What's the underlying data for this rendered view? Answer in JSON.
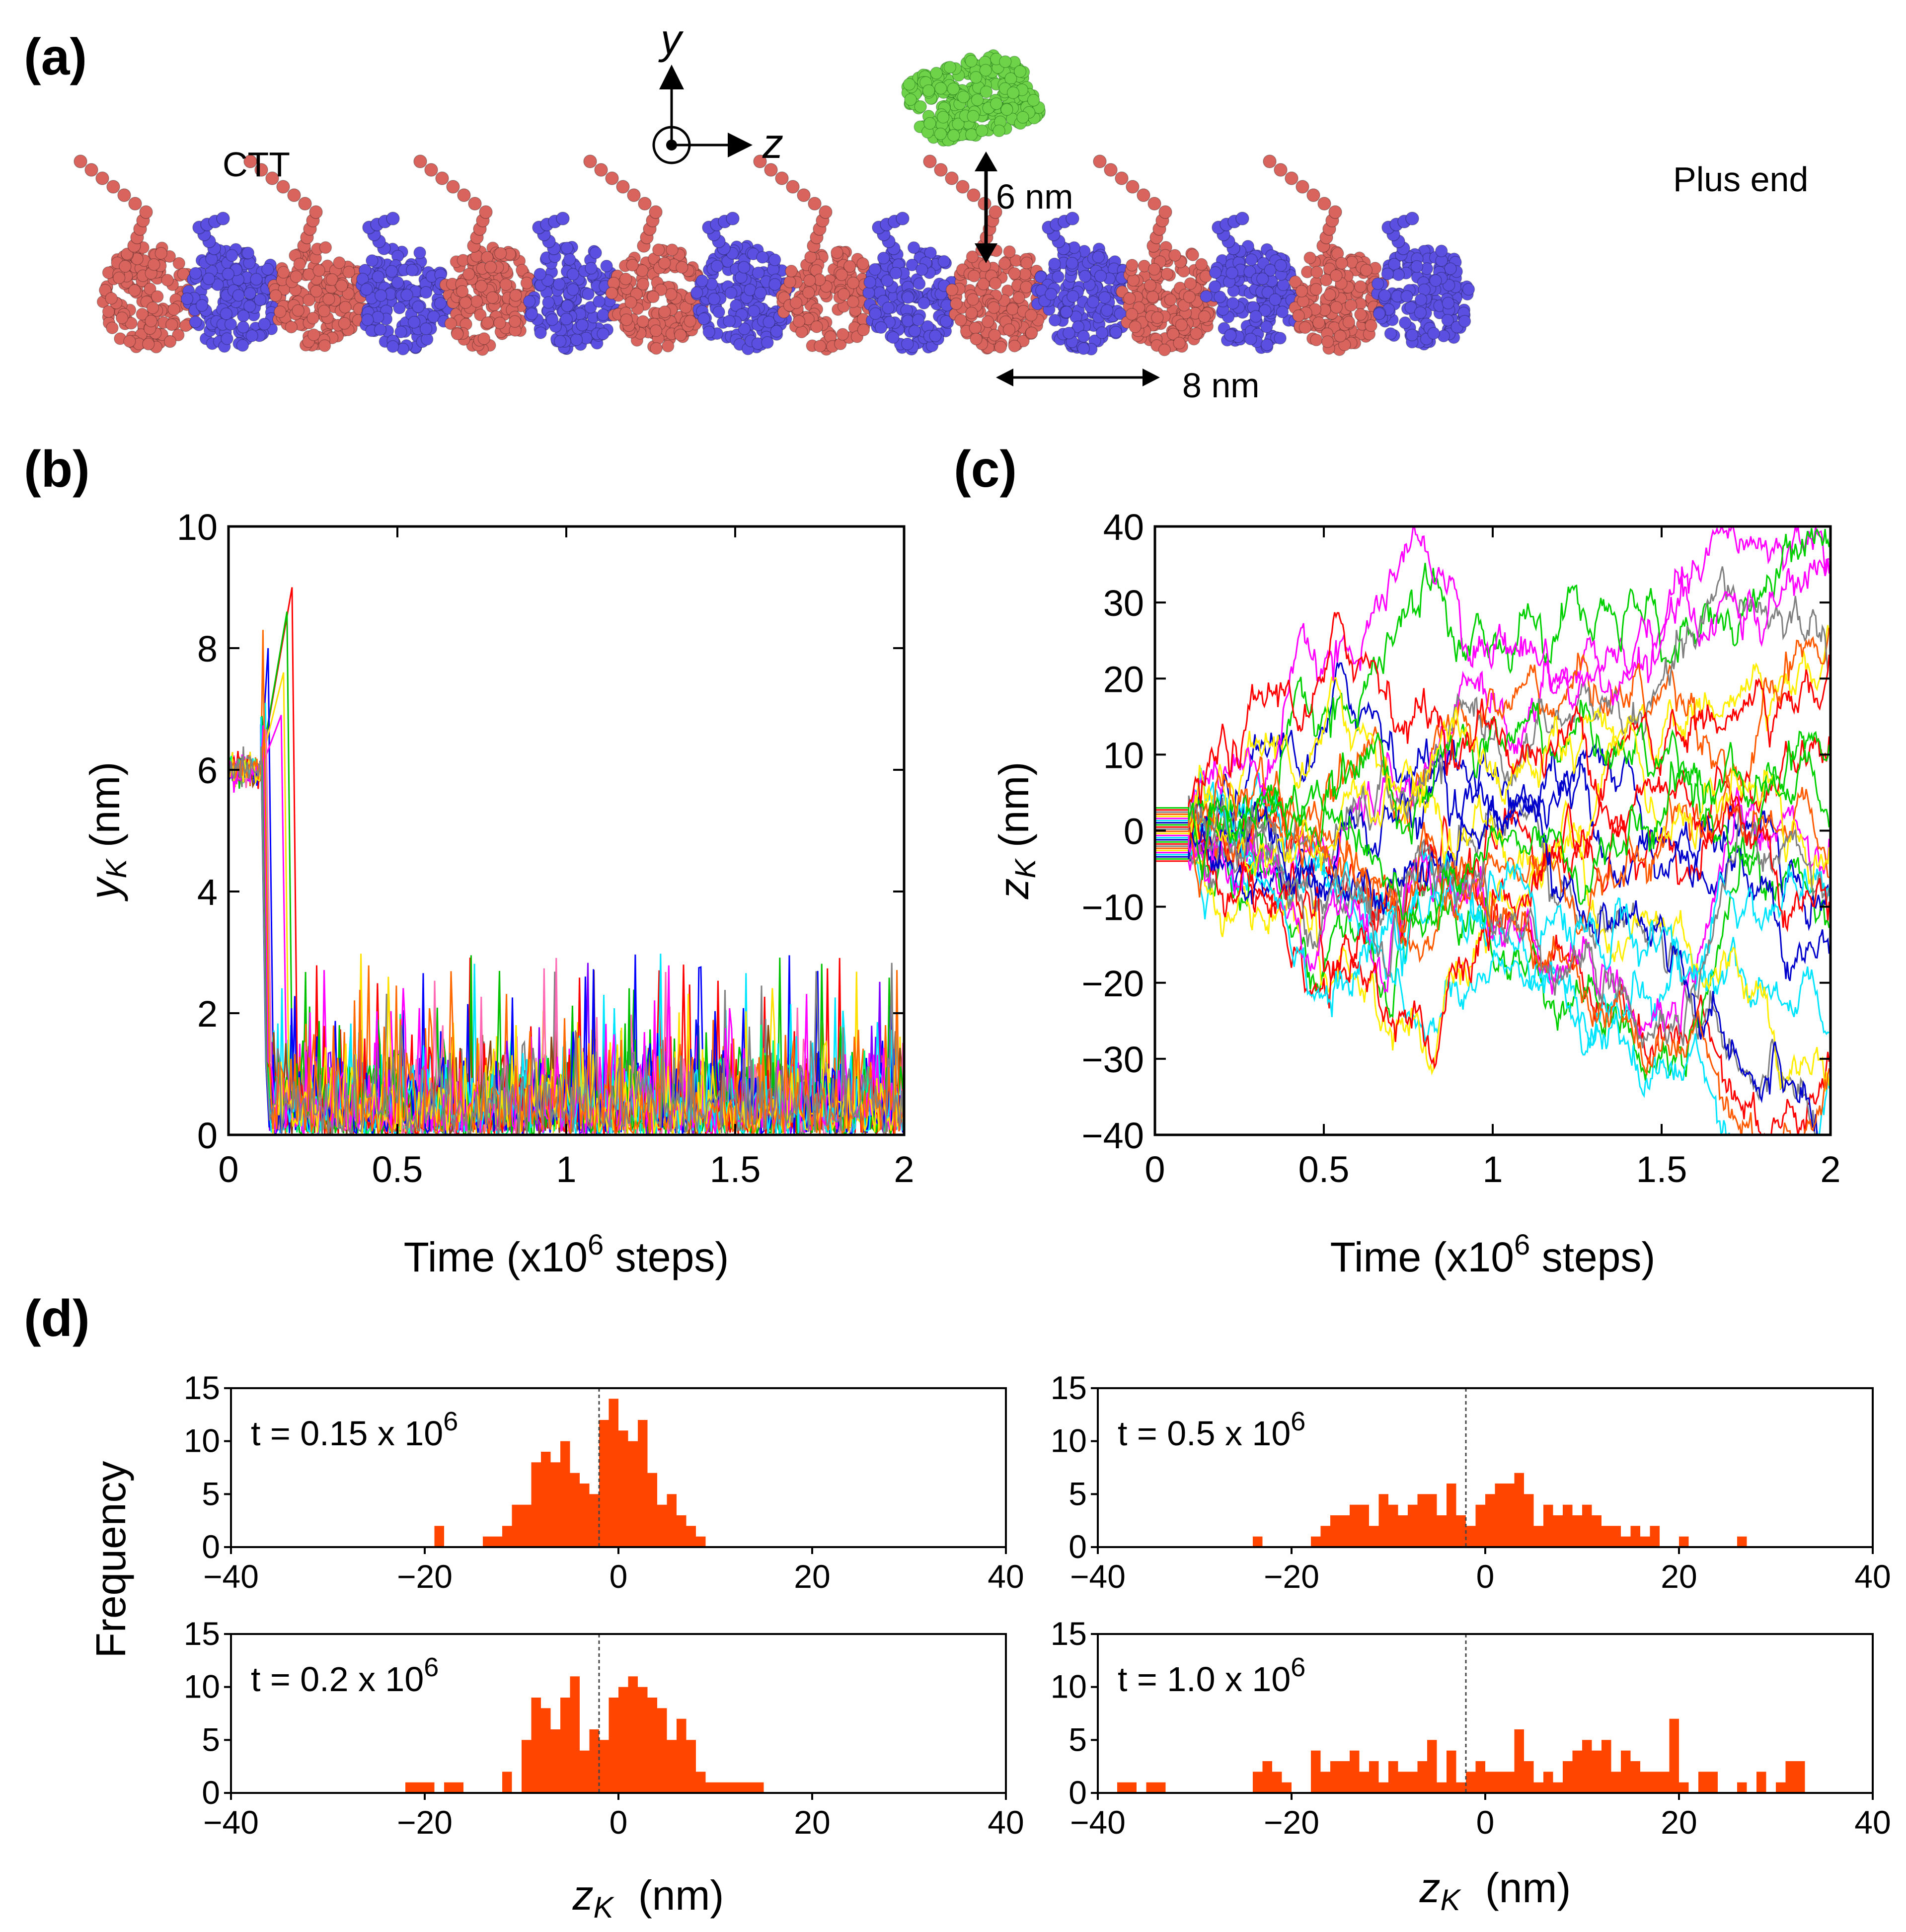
{
  "panel_labels": {
    "a": "(a)",
    "b": "(b)",
    "c": "(c)",
    "d": "(d)"
  },
  "panel_a": {
    "ctt_label": "CTT",
    "plus_end_label": "Plus end",
    "height_label": "6 nm",
    "spacing_label": "8 nm",
    "axis_y": "y",
    "axis_z": "z",
    "colors": {
      "alpha": "#d9645e",
      "beta": "#5a4fe0",
      "kinesin": "#6fd34a"
    }
  },
  "chart_data": [
    {
      "id": "b",
      "type": "line",
      "xlabel_prefix": "Time (x10",
      "xlabel_exp": "6",
      "xlabel_suffix": " steps)",
      "ylabel_main": "y",
      "ylabel_sub": "K",
      "ylabel_unit": " (nm)",
      "xlim": [
        0,
        2
      ],
      "ylim": [
        0,
        10
      ],
      "xticks": [
        0,
        0.5,
        1,
        1.5,
        2
      ],
      "xtick_labels": [
        "0",
        "0.5",
        "1",
        "1.5",
        "2"
      ],
      "yticks": [
        0,
        2,
        4,
        6,
        8,
        10
      ],
      "ytick_labels": [
        "0",
        "2",
        "4",
        "6",
        "8",
        "10"
      ],
      "n_trajectories": 20,
      "initial_height_nm": 6.0,
      "release_time": 0.1,
      "peak_heights": [
        9.0,
        8.6,
        8.0,
        7.1,
        6.9,
        7.6,
        8.3
      ],
      "bound_mean_nm": 0.7,
      "bound_max_nm": 3.0,
      "series_colors": [
        "#ff0000",
        "#00c000",
        "#0000ff",
        "#00e5ff",
        "#ff00ff",
        "#ffe000",
        "#ff6a00",
        "#808080",
        "#8b4513",
        "#7f00ff",
        "#00ff7f",
        "#ff69b4"
      ]
    },
    {
      "id": "c",
      "type": "line",
      "xlabel_prefix": "Time (x10",
      "xlabel_exp": "6",
      "xlabel_suffix": " steps)",
      "ylabel_main": "z",
      "ylabel_sub": "K",
      "ylabel_unit": " (nm)",
      "xlim": [
        0,
        2
      ],
      "ylim": [
        -40,
        40
      ],
      "xticks": [
        0,
        0.5,
        1,
        1.5,
        2
      ],
      "xtick_labels": [
        "0",
        "0.5",
        "1",
        "1.5",
        "2"
      ],
      "yticks": [
        -40,
        -30,
        -20,
        -10,
        0,
        10,
        20,
        30,
        40
      ],
      "ytick_labels": [
        "−40",
        "−30",
        "−20",
        "−10",
        "0",
        "10",
        "20",
        "30",
        "40"
      ],
      "n_trajectories": 26,
      "initial_spread_nm": [
        -4,
        3
      ],
      "release_time": 0.1,
      "series_colors": [
        "#ff0000",
        "#00d000",
        "#0000cc",
        "#00e5ff",
        "#ff00ff",
        "#ffee00",
        "#ff5a00",
        "#808080"
      ]
    },
    {
      "id": "d1",
      "type": "bar",
      "annotation_prefix": "t = 0.15 x 10",
      "annotation_exp": "6",
      "xlim": [
        -40,
        40
      ],
      "ylim": [
        0,
        15
      ],
      "xticks": [
        -40,
        -20,
        0,
        20,
        40
      ],
      "xtick_labels": [
        "−40",
        "−20",
        "0",
        "20",
        "40"
      ],
      "yticks": [
        0,
        5,
        10,
        15
      ],
      "ytick_labels": [
        "0",
        "5",
        "10",
        "15"
      ],
      "bin_width": 1,
      "dashed_line_x": -2,
      "bin_starts": [
        -19,
        -14,
        -13,
        -12,
        -11,
        -10,
        -9,
        -8,
        -7,
        -6,
        -5,
        -4,
        -3,
        -2,
        -1,
        0,
        1,
        2,
        3,
        4,
        5,
        6,
        7,
        8
      ],
      "values": [
        2,
        1,
        1,
        2,
        4,
        4,
        8,
        9,
        8,
        10,
        7,
        6,
        5,
        12,
        14,
        11,
        10,
        12,
        7,
        4,
        5,
        3,
        2,
        1
      ],
      "color": "#ff4500"
    },
    {
      "id": "d2",
      "type": "bar",
      "annotation_prefix": "t = 0.5 x 10",
      "annotation_exp": "6",
      "xlim": [
        -40,
        40
      ],
      "ylim": [
        0,
        15
      ],
      "xticks": [
        -40,
        -20,
        0,
        20,
        40
      ],
      "xtick_labels": [
        "−40",
        "−20",
        "0",
        "20",
        "40"
      ],
      "yticks": [
        0,
        5,
        10,
        15
      ],
      "ytick_labels": [
        "0",
        "5",
        "10",
        "15"
      ],
      "bin_width": 1,
      "dashed_line_x": -2,
      "bin_starts": [
        -24,
        -18,
        -17,
        -16,
        -15,
        -14,
        -13,
        -12,
        -11,
        -10,
        -9,
        -8,
        -7,
        -6,
        -5,
        -4,
        -3,
        -2,
        -1,
        0,
        1,
        2,
        3,
        4,
        5,
        6,
        7,
        8,
        9,
        10,
        11,
        12,
        13,
        14,
        15,
        16,
        17,
        20,
        26
      ],
      "values": [
        1,
        1,
        2,
        3,
        3,
        4,
        4,
        2,
        5,
        4,
        3,
        4,
        5,
        5,
        3,
        6,
        3,
        2,
        4,
        5,
        6,
        6,
        7,
        5,
        2,
        4,
        3,
        4,
        3,
        4,
        3,
        2,
        2,
        1,
        2,
        1,
        2,
        1,
        1
      ],
      "color": "#ff4500"
    },
    {
      "id": "d3",
      "type": "bar",
      "annotation_prefix": "t = 0.2 x 10",
      "annotation_exp": "6",
      "xlim": [
        -40,
        40
      ],
      "ylim": [
        0,
        15
      ],
      "xticks": [
        -40,
        -20,
        0,
        20,
        40
      ],
      "xtick_labels": [
        "−40",
        "−20",
        "0",
        "20",
        "40"
      ],
      "yticks": [
        0,
        5,
        10,
        15
      ],
      "ytick_labels": [
        "0",
        "5",
        "10",
        "15"
      ],
      "bin_width": 1,
      "dashed_line_x": -2,
      "bin_starts": [
        -22,
        -21,
        -20,
        -18,
        -17,
        -12,
        -10,
        -9,
        -8,
        -7,
        -6,
        -5,
        -4,
        -3,
        -2,
        -1,
        0,
        1,
        2,
        3,
        4,
        5,
        6,
        7,
        8,
        9,
        10,
        11,
        12,
        13,
        14
      ],
      "values": [
        1,
        1,
        1,
        1,
        1,
        2,
        5,
        9,
        8,
        6,
        9,
        11,
        4,
        6,
        5,
        9,
        10,
        11,
        10,
        9,
        8,
        5,
        7,
        5,
        2,
        1,
        1,
        1,
        1,
        1,
        1
      ],
      "color": "#ff4500"
    },
    {
      "id": "d4",
      "type": "bar",
      "annotation_prefix": "t = 1.0 x 10",
      "annotation_exp": "6",
      "xlim": [
        -40,
        40
      ],
      "ylim": [
        0,
        15
      ],
      "xticks": [
        -40,
        -20,
        0,
        20,
        40
      ],
      "xtick_labels": [
        "−40",
        "−20",
        "0",
        "20",
        "40"
      ],
      "yticks": [
        0,
        5,
        10,
        15
      ],
      "ytick_labels": [
        "0",
        "5",
        "10",
        "15"
      ],
      "bin_width": 1,
      "dashed_line_x": -2,
      "bin_starts": [
        -38,
        -37,
        -35,
        -34,
        -24,
        -23,
        -22,
        -21,
        -18,
        -17,
        -16,
        -15,
        -14,
        -13,
        -12,
        -11,
        -10,
        -9,
        -8,
        -7,
        -6,
        -5,
        -4,
        -3,
        -2,
        -1,
        0,
        1,
        2,
        3,
        4,
        5,
        6,
        7,
        8,
        9,
        10,
        11,
        12,
        13,
        14,
        15,
        16,
        17,
        18,
        19,
        20,
        22,
        23,
        26,
        28,
        30,
        31,
        32
      ],
      "values": [
        1,
        1,
        1,
        1,
        2,
        3,
        2,
        1,
        4,
        2,
        3,
        3,
        4,
        2,
        3,
        1,
        3,
        2,
        2,
        3,
        5,
        1,
        4,
        1,
        2,
        3,
        2,
        2,
        2,
        6,
        3,
        1,
        2,
        1,
        3,
        4,
        5,
        4,
        5,
        2,
        4,
        3,
        2,
        2,
        2,
        7,
        1,
        2,
        2,
        1,
        2,
        1,
        3,
        3
      ],
      "color": "#ff4500"
    }
  ],
  "panel_d": {
    "frequency_label": "Frequency",
    "xlabel_main": "z",
    "xlabel_sub": "K",
    "xlabel_unit": "(nm)"
  }
}
